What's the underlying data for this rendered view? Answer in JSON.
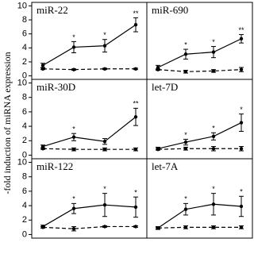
{
  "ylabel": "-fold induction of miRNA expression",
  "chart_data": [
    {
      "type": "line",
      "title": "miR-22",
      "categories": [
        null,
        null,
        null,
        null
      ],
      "ylim": [
        -0.5,
        10.5
      ],
      "yticks": [
        0,
        2,
        4,
        6,
        8,
        10
      ],
      "series": [
        {
          "color": "#000000",
          "dash": false,
          "values": [
            1.5,
            4.1,
            4.3,
            7.3
          ],
          "errors": [
            0.3,
            0.8,
            0.9,
            1.0
          ],
          "markers": [
            null,
            "*",
            "*",
            "**"
          ]
        },
        {
          "color": "#000000",
          "dash": true,
          "values": [
            1.0,
            0.9,
            1.0,
            1.0
          ],
          "errors": [
            0.1,
            0.1,
            0.1,
            0.1
          ]
        }
      ]
    },
    {
      "type": "line",
      "title": "miR-690",
      "categories": [
        null,
        null,
        null,
        null
      ],
      "ylim": [
        -0.5,
        10.5
      ],
      "series": [
        {
          "color": "#000000",
          "dash": false,
          "values": [
            1.2,
            3.1,
            3.4,
            5.3
          ],
          "errors": [
            0.3,
            0.7,
            0.8,
            0.6
          ],
          "markers": [
            null,
            "*",
            "*",
            "**"
          ]
        },
        {
          "color": "#000000",
          "dash": true,
          "values": [
            0.9,
            0.6,
            0.7,
            0.9
          ],
          "errors": [
            0.1,
            0.2,
            0.2,
            0.3
          ]
        }
      ]
    },
    {
      "type": "line",
      "title": "miR-30D",
      "categories": [
        null,
        null,
        null,
        null
      ],
      "ylim": [
        -0.5,
        10.5
      ],
      "yticks": [
        0,
        2,
        4,
        6,
        8,
        10
      ],
      "series": [
        {
          "color": "#000000",
          "dash": false,
          "values": [
            1.2,
            2.5,
            1.9,
            5.3
          ],
          "errors": [
            0.2,
            0.5,
            0.4,
            1.2
          ],
          "markers": [
            null,
            "*",
            null,
            "**"
          ]
        },
        {
          "color": "#000000",
          "dash": true,
          "values": [
            0.9,
            0.8,
            0.8,
            0.8
          ],
          "errors": [
            0.1,
            0.2,
            0.2,
            0.2
          ]
        }
      ]
    },
    {
      "type": "line",
      "title": "let-7D",
      "categories": [
        null,
        null,
        null,
        null
      ],
      "ylim": [
        -0.5,
        10.5
      ],
      "series": [
        {
          "color": "#000000",
          "dash": false,
          "values": [
            0.9,
            1.8,
            2.6,
            4.5
          ],
          "errors": [
            0.2,
            0.4,
            0.5,
            1.2
          ],
          "markers": [
            null,
            "*",
            "*",
            "*"
          ]
        },
        {
          "color": "#000000",
          "dash": true,
          "values": [
            0.8,
            0.9,
            0.9,
            0.9
          ],
          "errors": [
            0.1,
            0.2,
            0.3,
            0.3
          ]
        }
      ]
    },
    {
      "type": "line",
      "title": "miR-122",
      "categories": [
        null,
        null,
        null,
        null
      ],
      "ylim": [
        -0.5,
        10.5
      ],
      "yticks": [
        0,
        2,
        4,
        6,
        8,
        10
      ],
      "series": [
        {
          "color": "#000000",
          "dash": false,
          "values": [
            1.1,
            3.6,
            4.1,
            3.8
          ],
          "errors": [
            0.2,
            0.7,
            1.6,
            1.4
          ],
          "markers": [
            null,
            "*",
            "*",
            "*"
          ]
        },
        {
          "color": "#000000",
          "dash": true,
          "values": [
            1.0,
            0.8,
            1.1,
            1.1
          ],
          "errors": [
            0.1,
            0.3,
            0.1,
            0.1
          ]
        }
      ]
    },
    {
      "type": "line",
      "title": "let-7A",
      "categories": [
        null,
        null,
        null,
        null
      ],
      "ylim": [
        -0.5,
        10.5
      ],
      "series": [
        {
          "color": "#000000",
          "dash": false,
          "values": [
            0.9,
            3.5,
            4.2,
            3.9
          ],
          "errors": [
            0.2,
            0.8,
            1.5,
            1.4
          ],
          "markers": [
            null,
            "*",
            "*",
            "*"
          ]
        },
        {
          "color": "#000000",
          "dash": true,
          "values": [
            0.9,
            1.0,
            1.0,
            1.0
          ],
          "errors": [
            0.1,
            0.2,
            0.2,
            0.2
          ]
        }
      ]
    }
  ]
}
